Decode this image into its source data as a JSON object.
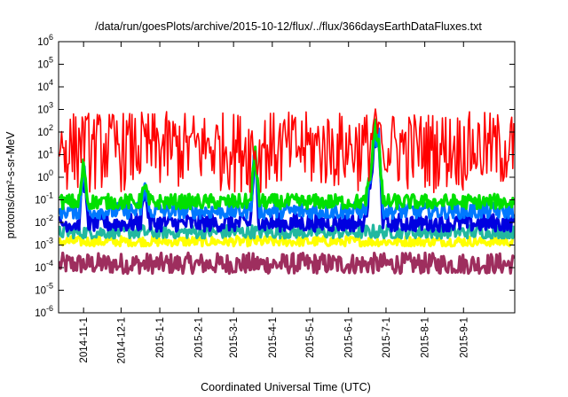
{
  "chart_data": {
    "type": "line",
    "title": "/data/run/goesPlots/archive/2015-10-12/flux/../flux/366daysEarthDataFluxes.txt",
    "xlabel": "Coordinated Universal Time (UTC)",
    "ylabel": "protons/cm²-s-sr-MeV",
    "yscale": "log",
    "ylim": [
      1e-06,
      1000000.0
    ],
    "xlim": [
      "2014-10-12",
      "2015-10-12"
    ],
    "grid": false,
    "y_ticks": [
      {
        "value": 1e-06,
        "mantissa": "10",
        "exp": "-6"
      },
      {
        "value": 1e-05,
        "mantissa": "10",
        "exp": "-5"
      },
      {
        "value": 0.0001,
        "mantissa": "10",
        "exp": "-4"
      },
      {
        "value": 0.001,
        "mantissa": "10",
        "exp": "-3"
      },
      {
        "value": 0.01,
        "mantissa": "10",
        "exp": "-2"
      },
      {
        "value": 0.1,
        "mantissa": "10",
        "exp": "-1"
      },
      {
        "value": 1.0,
        "mantissa": "10",
        "exp": "0"
      },
      {
        "value": 10.0,
        "mantissa": "10",
        "exp": "1"
      },
      {
        "value": 100.0,
        "mantissa": "10",
        "exp": "2"
      },
      {
        "value": 1000.0,
        "mantissa": "10",
        "exp": "3"
      },
      {
        "value": 10000.0,
        "mantissa": "10",
        "exp": "4"
      },
      {
        "value": 100000.0,
        "mantissa": "10",
        "exp": "5"
      },
      {
        "value": 1000000.0,
        "mantissa": "10",
        "exp": "6"
      }
    ],
    "x_ticks": [
      "2014-11-1",
      "2014-12-1",
      "2015-1-1",
      "2015-2-1",
      "2015-3-1",
      "2015-4-1",
      "2015-5-1",
      "2015-6-1",
      "2015-7-1",
      "2015-8-1",
      "2015-9-1"
    ],
    "series": [
      {
        "color": "#9e2e5e",
        "base": 0.00012,
        "low": 5.5e-05,
        "high": 0.00045
      },
      {
        "color": "#ffff00",
        "base": 0.0015,
        "low": 0.0009,
        "high": 0.0025
      },
      {
        "color": "#22b8a0",
        "base": 0.004,
        "low": 0.002,
        "high": 0.008
      },
      {
        "color": "#0000e0",
        "base": 0.01,
        "low": 0.004,
        "high": 0.025
      },
      {
        "color": "#0078ff",
        "base": 0.035,
        "low": 0.015,
        "high": 0.08
      },
      {
        "color": "#00e000",
        "base": 0.08,
        "low": 0.04,
        "high": 0.18
      },
      {
        "color": "#ff0000",
        "base": 30.0,
        "low": 0.2,
        "high": 800.0
      }
    ],
    "events": [
      {
        "date": "2014-11-1",
        "peak": 10.0
      },
      {
        "date": "2014-12-20",
        "peak": 0.8
      },
      {
        "date": "2015-3-18",
        "peak": 50.0
      },
      {
        "date": "2015-6-18",
        "peak": 3.0
      },
      {
        "date": "2015-6-22",
        "peak": 2000.0
      },
      {
        "date": "2015-6-25",
        "peak": 400.0
      }
    ]
  }
}
